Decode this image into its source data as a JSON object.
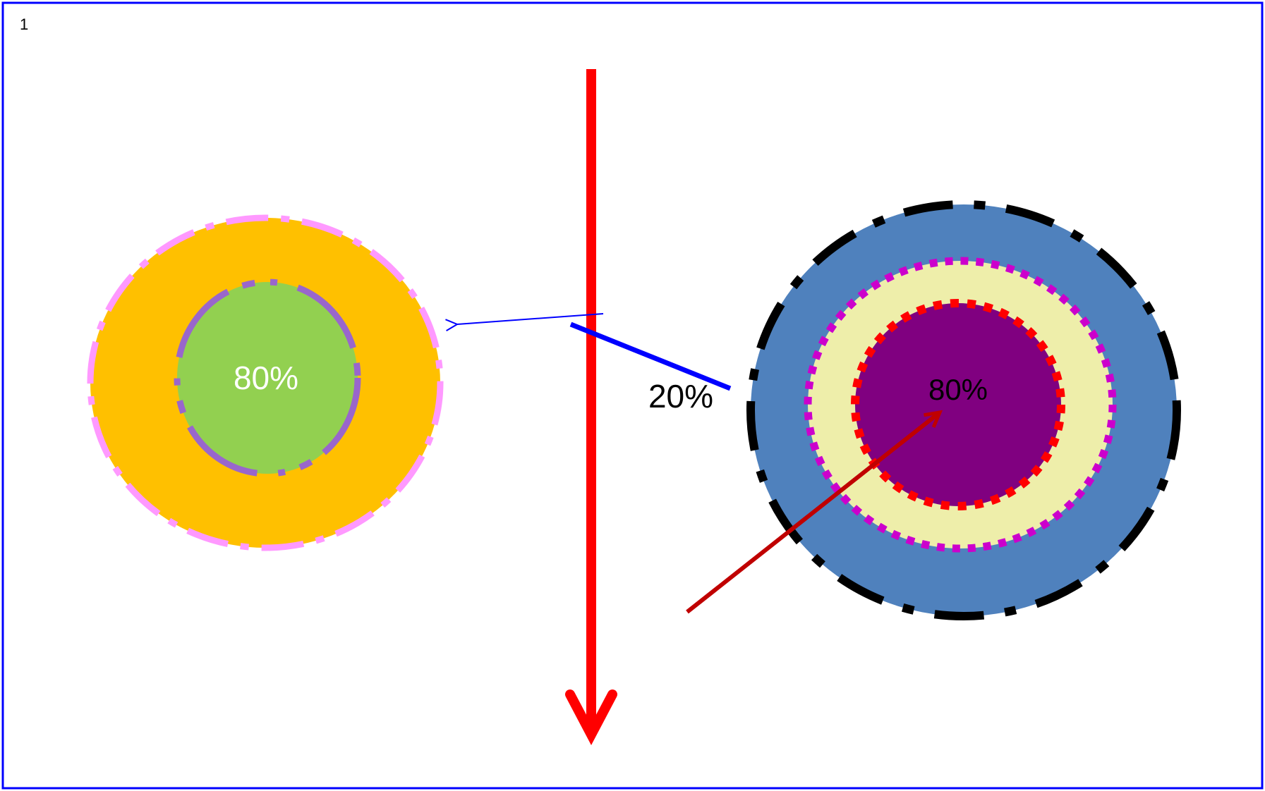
{
  "slide": {
    "number": "1"
  },
  "labels": {
    "left_center": "80%",
    "middle": "20%",
    "right_center": "80%"
  },
  "colors": {
    "border": "#0000ff",
    "left_outer": "#ffc000",
    "left_outer_dash": "#ff99ff",
    "left_inner": "#92d050",
    "left_inner_dash": "#9966cc",
    "right_outer": "#4f81bd",
    "right_outer_dash": "#000000",
    "right_middle": "#eeeeaa",
    "right_middle_dots": "#cc00cc",
    "right_inner": "#800080",
    "right_inner_dots": "#ff0000",
    "vertical_arrow": "#ff0000",
    "thin_arrow": "#0000ff",
    "diagonal_arrow": "#c00000",
    "blue_line": "#0000ff",
    "left_label": "#ffffff",
    "middle_label": "#000000",
    "right_label": "#000000"
  }
}
